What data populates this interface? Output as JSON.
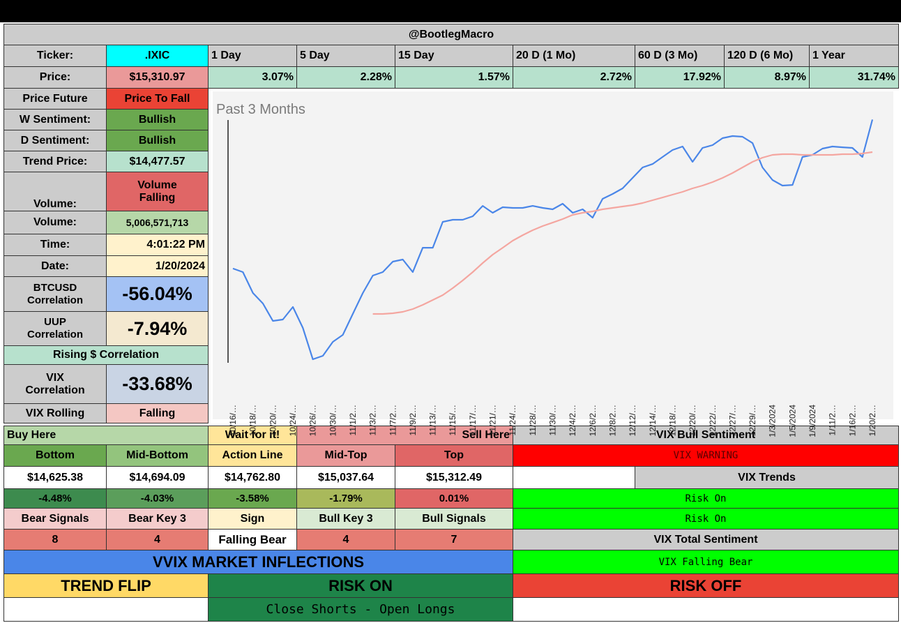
{
  "header": {
    "title": "@BootlegMacro"
  },
  "ticker": {
    "label": "Ticker:",
    "value": ".IXIC"
  },
  "periods": [
    "1 Day",
    "5 Day",
    "15 Day",
    "20 D (1 Mo)",
    "60 D (3 Mo)",
    "120 D (6 Mo)",
    "1 Year"
  ],
  "price": {
    "label": "Price:",
    "value": "$15,310.97"
  },
  "returns": [
    "3.07%",
    "2.28%",
    "1.57%",
    "2.72%",
    "17.92%",
    "8.97%",
    "31.74%"
  ],
  "stats": [
    {
      "label": "Price Future",
      "value": "Price To Fall"
    },
    {
      "label": "W Sentiment:",
      "value": "Bullish"
    },
    {
      "label": "D Sentiment:",
      "value": "Bullish"
    },
    {
      "label": "Trend Price:",
      "value": "$14,477.57"
    },
    {
      "label": "Volume:",
      "value": "Volume Falling"
    },
    {
      "label": "Volume:",
      "value": "5,006,571,713"
    },
    {
      "label": "Time:",
      "value": "4:01:22 PM"
    },
    {
      "label": "Date:",
      "value": "1/20/2024"
    },
    {
      "label": "BTCUSD Correlation",
      "value": "-56.04%"
    },
    {
      "label": "UUP Correlation",
      "value": "-7.94%"
    }
  ],
  "rising_correlation": "Rising $ Correlation",
  "vix_stats": [
    {
      "label": "VIX Correlation",
      "value": "-33.68%"
    },
    {
      "label": "VIX Rolling",
      "value": "Falling"
    }
  ],
  "levels": {
    "zones": [
      "Buy Here",
      "Wait for it!",
      "Sell Here"
    ],
    "names": [
      "Bottom",
      "Mid-Bottom",
      "Action Line",
      "Mid-Top",
      "Top"
    ],
    "prices": [
      "$14,625.38",
      "$14,694.09",
      "$14,762.80",
      "$15,037.64",
      "$15,312.49"
    ],
    "changes": [
      "-4.48%",
      "-4.03%",
      "-3.58%",
      "-1.79%",
      "0.01%"
    ]
  },
  "signals": {
    "names": [
      "Bear Signals",
      "Bear Key 3",
      "Sign",
      "Bull Key 3",
      "Bull Signals"
    ],
    "values": [
      8,
      4,
      "Falling Bear",
      4,
      7
    ]
  },
  "vix": {
    "bull_title": "VIX Bull Sentiment",
    "warning": "VIX WARNING",
    "trends_title": "VIX Trends",
    "trends": [
      "Risk On",
      "Risk On"
    ],
    "total_title": "VIX Total Sentiment",
    "total": "VIX Falling Bear"
  },
  "inflections": {
    "title": "VVIX MARKET INFLECTIONS",
    "trend_flip": "TREND FLIP",
    "risk_on": "RISK ON",
    "risk_off": "RISK OFF",
    "action": "Close Shorts - Open Longs"
  },
  "chart_data": {
    "type": "line",
    "title": "Past 3 Months",
    "categories": [
      "10/16/…",
      null,
      "10/18/…",
      null,
      "10/20/…",
      null,
      "10/24/…",
      null,
      "10/26/…",
      null,
      "10/30/…",
      null,
      "11/1/2…",
      null,
      "11/3/2…",
      null,
      "11/7/2…",
      null,
      "11/9/2…",
      null,
      "11/13/…",
      null,
      "11/15/…",
      null,
      "11/17/…",
      null,
      "11/21/…",
      null,
      "11/24/…",
      null,
      "11/28/…",
      null,
      "11/30/…",
      null,
      "12/4/2…",
      null,
      "12/6/2…",
      null,
      "12/8/2…",
      null,
      "12/12/…",
      null,
      "12/14/…",
      null,
      "12/18/…",
      null,
      "12/20/…",
      null,
      "12/22/…",
      null,
      "12/27/…",
      null,
      "12/29/…",
      null,
      "1/3/2024",
      null,
      "1/5/2024",
      null,
      "1/9/2024",
      null,
      "1/11/2…",
      null,
      "1/16/2…",
      null,
      "1/20/2…"
    ],
    "ylim": [
      12580,
      15400
    ],
    "series": [
      {
        "color": "#4a86e8",
        "values": [
          13638,
          13598,
          13363,
          13246,
          13050,
          13066,
          13207,
          12972,
          12619,
          12658,
          12815,
          12893,
          13128,
          13363,
          13559,
          13598,
          13716,
          13739,
          13598,
          13872,
          13872,
          14162,
          14186,
          14186,
          14225,
          14342,
          14264,
          14327,
          14319,
          14319,
          14342,
          14319,
          14303,
          14366,
          14264,
          14303,
          14209,
          14421,
          14476,
          14538,
          14656,
          14773,
          14812,
          14891,
          14969,
          15008,
          14836,
          14993,
          15024,
          15102,
          15126,
          15118,
          15047,
          14773,
          14632,
          14570,
          14577,
          14891,
          14914,
          14985,
          15008,
          15000,
          14993,
          14891,
          15311
        ]
      },
      {
        "color": "#f4a6a0",
        "values": [
          null,
          null,
          null,
          null,
          null,
          null,
          null,
          null,
          null,
          null,
          null,
          null,
          null,
          null,
          13128,
          13128,
          13136,
          13152,
          13183,
          13230,
          13285,
          13340,
          13418,
          13504,
          13598,
          13700,
          13794,
          13872,
          13951,
          14013,
          14068,
          14115,
          14154,
          14194,
          14241,
          14264,
          14280,
          14303,
          14319,
          14335,
          14350,
          14374,
          14405,
          14436,
          14468,
          14499,
          14538,
          14570,
          14609,
          14656,
          14711,
          14773,
          14836,
          14883,
          14914,
          14922,
          14922,
          14914,
          14914,
          14914,
          14914,
          14922,
          14922,
          14930,
          14946
        ]
      }
    ]
  }
}
